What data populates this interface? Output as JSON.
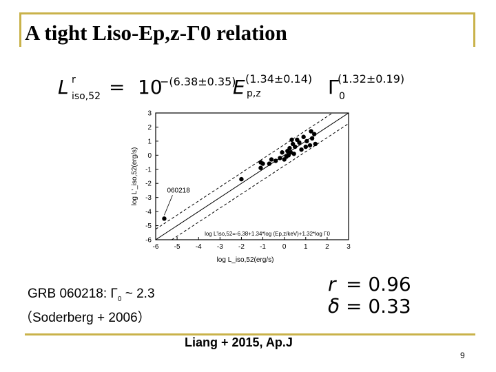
{
  "slide": {
    "title": "A tight Liso-Ep,z-Γ0 relation",
    "page_number": "9",
    "citation": "Liang + 2015, Ap.J",
    "colors": {
      "accent_bar": "#c9b24a"
    }
  },
  "equation": {
    "lhs_symbol": "L",
    "lhs_superscript": "r",
    "lhs_subscript": "iso,52",
    "equals": "=",
    "base": "10",
    "base_exponent": "−(6.38±0.35)",
    "e_symbol": "E",
    "e_subscript": "p,z",
    "e_exponent": "(1.34±0.14)",
    "gamma_symbol": "Γ",
    "gamma_subscript": "0",
    "gamma_exponent": "(1.32±0.19)"
  },
  "note": {
    "grb_label": "GRB 060218: ",
    "gamma": "Γ",
    "gamma_sub": "0",
    "gamma_value": " ~ 2.3",
    "reference": "（Soderberg + 2006）"
  },
  "stats": {
    "r_symbol": "r",
    "r_value": "= 0.96",
    "delta_symbol": "δ",
    "delta_value": "= 0.33"
  },
  "chart_data": {
    "type": "scatter",
    "xlabel": "log L_iso,52(erg/s)",
    "ylabel": "log L'_iso,52(erg/s)",
    "xlim": [
      -6,
      3
    ],
    "ylim": [
      -6,
      3
    ],
    "x_ticks": [
      "-6",
      "-5",
      "-4",
      "-3",
      "-2",
      "-1",
      "0",
      "1",
      "2",
      "3"
    ],
    "y_ticks": [
      "3",
      "2",
      "1",
      "0",
      "-1",
      "-2",
      "-3",
      "-4",
      "-5",
      "-6"
    ],
    "fit_line": {
      "slope": 1.0,
      "intercept": 0.0
    },
    "bounds": [
      {
        "slope": 1.0,
        "intercept": 0.75
      },
      {
        "slope": 1.0,
        "intercept": -0.75
      }
    ],
    "annotation": {
      "text": "060218",
      "x": -5.6,
      "y": -4.5
    },
    "fit_label": "log L'iso,52=-6.38+1.34*log (Ep,z/keV)+1.32*log Γ0",
    "points": [
      {
        "x": -5.6,
        "y": -4.5
      },
      {
        "x": -2.0,
        "y": -1.7
      },
      {
        "x": -1.1,
        "y": -0.9
      },
      {
        "x": -1.1,
        "y": -0.5
      },
      {
        "x": -0.7,
        "y": -0.6
      },
      {
        "x": -0.6,
        "y": -0.3
      },
      {
        "x": -0.4,
        "y": -0.4
      },
      {
        "x": -0.2,
        "y": -0.2
      },
      {
        "x": -0.1,
        "y": 0.2
      },
      {
        "x": 0.0,
        "y": -0.3
      },
      {
        "x": 0.1,
        "y": -0.1
      },
      {
        "x": 0.15,
        "y": 0.3
      },
      {
        "x": 0.2,
        "y": 0.0
      },
      {
        "x": 0.25,
        "y": 0.5
      },
      {
        "x": 0.3,
        "y": 0.2
      },
      {
        "x": 0.35,
        "y": 1.1
      },
      {
        "x": 0.4,
        "y": 0.8
      },
      {
        "x": 0.45,
        "y": 0.1
      },
      {
        "x": 0.5,
        "y": 0.6
      },
      {
        "x": 0.6,
        "y": 1.1
      },
      {
        "x": 0.7,
        "y": 0.9
      },
      {
        "x": 0.8,
        "y": 0.4
      },
      {
        "x": 0.9,
        "y": 1.3
      },
      {
        "x": 1.0,
        "y": 0.6
      },
      {
        "x": 1.05,
        "y": 1.0
      },
      {
        "x": 1.2,
        "y": 0.7
      },
      {
        "x": 1.25,
        "y": 1.7
      },
      {
        "x": 1.3,
        "y": 1.2
      },
      {
        "x": 1.4,
        "y": 1.5
      },
      {
        "x": 1.45,
        "y": 0.8
      },
      {
        "x": -1.0,
        "y": -0.6
      }
    ]
  }
}
